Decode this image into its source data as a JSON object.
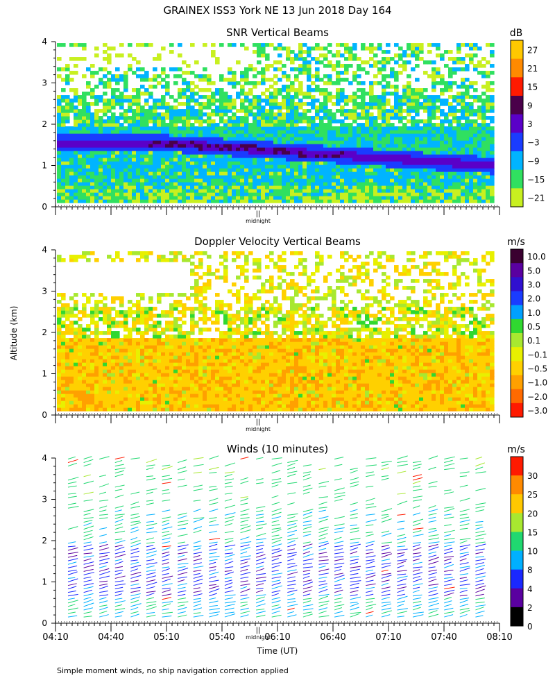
{
  "figure": {
    "title": "GRAINEX ISS3 York NE  13 Jun 2018 Day 164",
    "ylabel": "Altitude (km)",
    "xlabel": "Time (UT)",
    "marker_label": "midnight",
    "marker_symbol": "||",
    "footnote": "Simple moment winds, no ship navigation correction applied"
  },
  "chart_data": [
    {
      "type": "heatmap",
      "title": "SNR Vertical Beams",
      "colorbar_unit": "dB",
      "y_ticks": [
        "0",
        "1",
        "2",
        "3",
        "4"
      ],
      "ylim": [
        0,
        4
      ],
      "colorbar_labels": [
        "27",
        "21",
        "15",
        "9",
        "3",
        "−3",
        "−9",
        "−15",
        "−21"
      ],
      "colorbar_colors": [
        "#ffc800",
        "#ff8a00",
        "#ff1a00",
        "#4a004a",
        "#5a00c8",
        "#1a3cff",
        "#00b4ff",
        "#30e060",
        "#c8f020"
      ],
      "description_features": {
        "strong_layer_altitude_km_start": 1.5,
        "strong_layer_altitude_km_end": 1.0,
        "weak_echo_band_km": [
          2.1,
          2.6
        ],
        "upper_echo_km": [
          3.0,
          4.0
        ]
      }
    },
    {
      "type": "heatmap",
      "title": "Doppler Velocity Vertical Beams",
      "colorbar_unit": "m/s",
      "y_ticks": [
        "0",
        "1",
        "2",
        "3",
        "4"
      ],
      "ylim": [
        0,
        4
      ],
      "colorbar_labels": [
        "10.0",
        "5.0",
        "3.0",
        "2.0",
        "1.0",
        "0.5",
        "0.1",
        "−0.1",
        "−0.5",
        "−1.0",
        "−2.0",
        "−3.0"
      ],
      "colorbar_colors": [
        "#3a0030",
        "#5a00a0",
        "#3010d0",
        "#1a3cff",
        "#00a0ff",
        "#30d830",
        "#a8e830",
        "#e8f000",
        "#ffd000",
        "#ffa000",
        "#ff6a00",
        "#ff1a00"
      ]
    },
    {
      "type": "scatter",
      "title": "Winds (10 minutes)",
      "colorbar_unit": "m/s",
      "y_ticks": [
        "0",
        "1",
        "2",
        "3",
        "4"
      ],
      "ylim": [
        0,
        4
      ],
      "x_ticks": [
        "04:10",
        "04:40",
        "05:10",
        "05:40",
        "06:10",
        "06:40",
        "07:10",
        "07:40",
        "08:10"
      ],
      "colorbar_labels": [
        "30",
        "25",
        "20",
        "15",
        "10",
        "8",
        "4",
        "2",
        "0"
      ],
      "colorbar_colors": [
        "#ff1a00",
        "#ff8a00",
        "#ffc800",
        "#a8e830",
        "#20d870",
        "#00b0ff",
        "#1a28ff",
        "#5a00a0",
        "#000000"
      ]
    }
  ]
}
